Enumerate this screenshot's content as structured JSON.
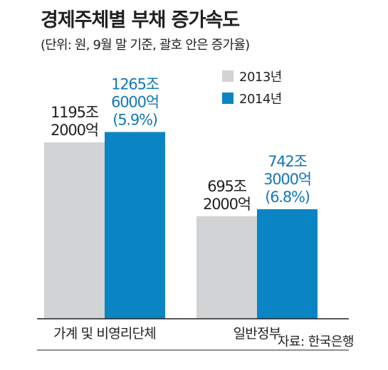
{
  "chart_data": {
    "type": "bar",
    "title": "경제주체별 부채 증가속도",
    "subtitle": "(단위: 원, 9월 말 기준, 괄호 안은 증가율)",
    "source": "자료: 한국은행",
    "categories": [
      "가계 및 비영리단체",
      "일반정부"
    ],
    "series": [
      {
        "name": "2013년",
        "color": "#d2d3d5",
        "label_color": "#231f20",
        "values": [
          1195.2,
          695.2
        ],
        "labels": [
          [
            "1195조",
            "2000억"
          ],
          [
            "695조",
            "2000억"
          ]
        ]
      },
      {
        "name": "2014년",
        "color": "#0a84c2",
        "label_color": "#1378b8",
        "values": [
          1265.6,
          742.3
        ],
        "labels": [
          [
            "1265조",
            "6000억",
            "(5.9%)"
          ],
          [
            "742조",
            "3000억",
            "(6.8%)"
          ]
        ]
      }
    ],
    "ylabel": "",
    "xlabel": "",
    "unit": "조원",
    "grid": false,
    "legend_position": "top-right"
  }
}
